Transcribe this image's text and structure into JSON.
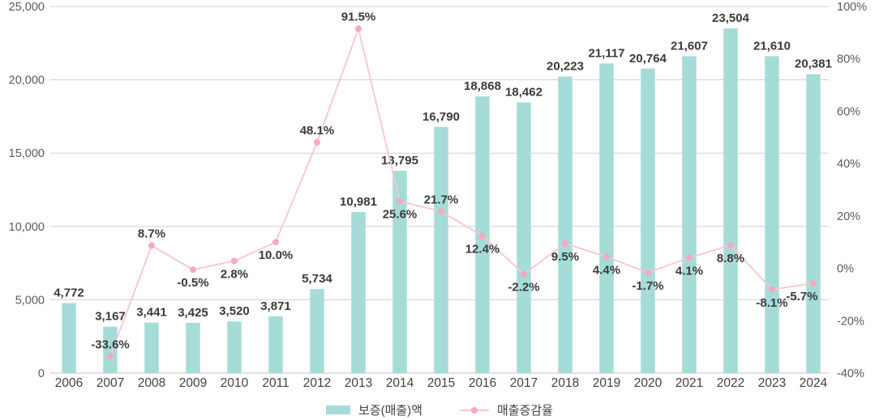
{
  "chart_data": {
    "type": "bar+line combo",
    "categories": [
      "2006",
      "2007",
      "2008",
      "2009",
      "2010",
      "2011",
      "2012",
      "2013",
      "2014",
      "2015",
      "2016",
      "2017",
      "2018",
      "2019",
      "2020",
      "2021",
      "2022",
      "2023",
      "2024"
    ],
    "series": [
      {
        "name": "보증(매출)액",
        "type": "bar",
        "axis": "left",
        "color": "#a6dcd8",
        "values": [
          4772,
          3167,
          3441,
          3425,
          3520,
          3871,
          5734,
          10981,
          13795,
          16790,
          18868,
          18462,
          20223,
          21117,
          20764,
          21607,
          23504,
          21610,
          20381
        ],
        "labels": [
          "4,772",
          "3,167",
          "3,441",
          "3,425",
          "3,520",
          "3,871",
          "5,734",
          "10,981",
          "13,795",
          "16,790",
          "18,868",
          "18,462",
          "20,223",
          "21,117",
          "20,764",
          "21,607",
          "23,504",
          "21,610",
          "20,381"
        ]
      },
      {
        "name": "매출증감율",
        "type": "line",
        "axis": "right",
        "color": "#f9c5d2",
        "marker_color": "#f4a9bf",
        "values": [
          null,
          -33.6,
          8.7,
          -0.5,
          2.8,
          10.0,
          48.1,
          91.5,
          25.6,
          21.7,
          12.4,
          -2.2,
          9.5,
          4.4,
          -1.7,
          4.1,
          8.8,
          -8.1,
          -5.7
        ],
        "labels": [
          null,
          "-33.6%",
          "8.7%",
          "-0.5%",
          "2.8%",
          "10.0%",
          "48.1%",
          "91.5%",
          "25.6%",
          "21.7%",
          "12.4%",
          "-2.2%",
          "9.5%",
          "4.4%",
          "-1.7%",
          "4.1%",
          "8.8%",
          "-8.1%",
          "-5.7%"
        ],
        "label_positions": [
          null,
          "above",
          "above",
          "below",
          "below",
          "below",
          "above",
          "above",
          "below",
          "above",
          "below",
          "below",
          "below",
          "below",
          "below",
          "below",
          "below",
          "below",
          "below"
        ]
      }
    ],
    "left_axis": {
      "min": 0,
      "max": 25000,
      "step": 5000,
      "tick_labels": [
        "25,000",
        "20,000",
        "15,000",
        "10,000",
        "5,000",
        "0"
      ]
    },
    "right_axis": {
      "min": -40,
      "max": 100,
      "step": 20,
      "tick_labels": [
        "100%",
        "80%",
        "60%",
        "40%",
        "20%",
        "0%",
        "-20%",
        "-40%"
      ]
    },
    "grid": true,
    "legend_position": "bottom",
    "title": "",
    "xlabel": "",
    "ylabel": ""
  },
  "colors": {
    "bar": "#a6dcd8",
    "line": "#f9c5d2",
    "marker": "#f4a9bf",
    "gridline": "#d0d0d0",
    "baseline": "#c2c2c2",
    "axis_text": "#5a5a5a",
    "category_text": "#424242",
    "data_label_text": "#3a3a3a"
  },
  "legend": {
    "items": [
      {
        "label": "보증(매출)액",
        "swatch": "bar-swatch"
      },
      {
        "label": "매출증감율",
        "swatch": "line-swatch"
      }
    ]
  }
}
